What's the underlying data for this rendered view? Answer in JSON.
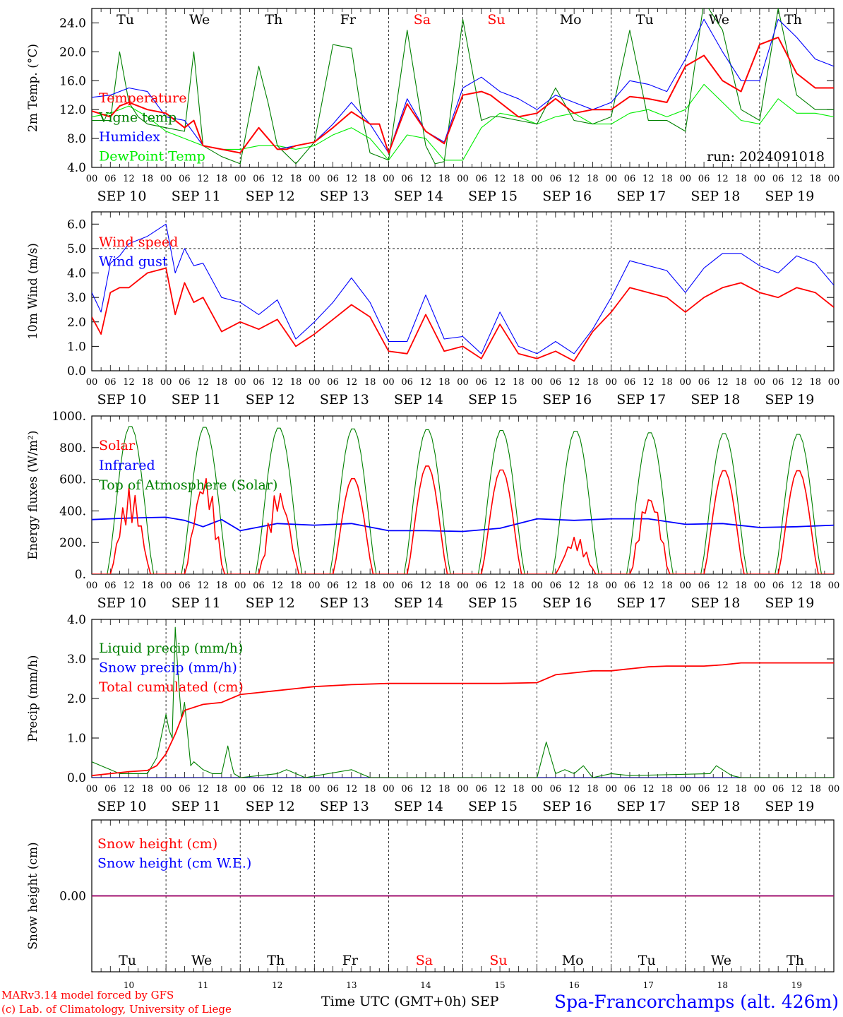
{
  "days": [
    "Tu",
    "We",
    "Th",
    "Fr",
    "Sa",
    "Su",
    "Mo",
    "Tu",
    "We",
    "Th"
  ],
  "weekend_days": [
    4,
    5
  ],
  "date_labels": [
    "SEP 10",
    "SEP 11",
    "SEP 12",
    "SEP 13",
    "SEP 14",
    "SEP 15",
    "SEP 16",
    "SEP 17",
    "SEP 18",
    "SEP 19"
  ],
  "bottom_day_numbers": [
    "10",
    "11",
    "12",
    "13",
    "14",
    "15",
    "16",
    "17",
    "18",
    "19"
  ],
  "hour_ticks": [
    "00",
    "06",
    "12",
    "18"
  ],
  "colors": {
    "red": "#ff0000",
    "darkgreen": "#008000",
    "blue": "#0000ff",
    "lightgreen": "#00ee00",
    "purple": "#800080",
    "weekend": "#ff0000",
    "axis": "#000000"
  },
  "run_label": "run: 2024091018",
  "xlabel": "Time UTC (GMT+0h) SEP",
  "station": "Spa-Francorchamps (alt. 426m)",
  "credit_1": "MARv3.14 model forced by GFS",
  "credit_2": "(c) Lab. of Climatology, University of Liege",
  "chart_data": [
    {
      "type": "line",
      "ylabel": "2m Temp. (°C)",
      "ylim": [
        4,
        26
      ],
      "yticks": [
        "4.0",
        "8.0",
        "12.0",
        "16.0",
        "20.0",
        "24.0"
      ],
      "ytick_values": [
        4,
        8,
        12,
        16,
        20,
        24
      ],
      "x_unit": "hours since SEP 10 00 UTC",
      "series": [
        {
          "name": "Temperature",
          "color": "red",
          "x": [
            0,
            6,
            9,
            12,
            18,
            24,
            30,
            33,
            36,
            42,
            48,
            54,
            60,
            63,
            66,
            72,
            78,
            84,
            90,
            93,
            96,
            102,
            108,
            114,
            120,
            126,
            129,
            132,
            138,
            144,
            150,
            156,
            162,
            168,
            174,
            180,
            186,
            192,
            198,
            204,
            210,
            216,
            222,
            228,
            234,
            240
          ],
          "values": [
            11.8,
            11,
            12.5,
            13,
            12,
            11.5,
            9.5,
            10.5,
            7,
            6.5,
            6,
            9.5,
            6.5,
            6.5,
            7,
            7.5,
            9.5,
            11.7,
            10,
            10,
            6,
            12.8,
            9,
            7.3,
            14,
            14.5,
            14,
            13,
            11,
            11.5,
            13.5,
            11.5,
            12,
            12,
            13.8,
            13.5,
            13,
            18,
            19.5,
            16,
            14.5,
            21,
            22,
            17,
            15,
            15
          ]
        },
        {
          "name": "Vigne temp",
          "color": "darkgreen",
          "x": [
            0,
            6,
            9,
            12,
            15,
            18,
            24,
            30,
            33,
            36,
            42,
            48,
            54,
            57,
            60,
            66,
            72,
            78,
            84,
            87,
            90,
            96,
            102,
            108,
            111,
            114,
            120,
            126,
            129,
            132,
            138,
            144,
            150,
            156,
            162,
            168,
            174,
            180,
            186,
            192,
            198,
            204,
            210,
            216,
            222,
            228,
            234,
            240
          ],
          "values": [
            10.5,
            10.5,
            20,
            13,
            11,
            10,
            9.5,
            9,
            20,
            7,
            5.5,
            4.5,
            18,
            13,
            7,
            4.5,
            7.5,
            21,
            20.5,
            12,
            6,
            5,
            23,
            7,
            4.5,
            4.8,
            24.5,
            10.5,
            11,
            11,
            10.5,
            10,
            15,
            10.5,
            10,
            11,
            23,
            10.5,
            10.5,
            9,
            27,
            23,
            12,
            10.5,
            26,
            14,
            12,
            12
          ]
        },
        {
          "name": "Humidex",
          "color": "blue",
          "x": [
            0,
            6,
            12,
            18,
            24,
            30,
            36,
            42,
            48,
            54,
            60,
            66,
            72,
            78,
            84,
            90,
            96,
            102,
            108,
            114,
            120,
            126,
            132,
            138,
            144,
            150,
            156,
            162,
            168,
            174,
            180,
            186,
            192,
            198,
            204,
            210,
            216,
            222,
            228,
            234,
            240
          ],
          "values": [
            13.7,
            14,
            15,
            14.5,
            11,
            10.5,
            7,
            6.5,
            6,
            9.5,
            6.5,
            7,
            7.5,
            10,
            13,
            10,
            6,
            13.5,
            9,
            7.5,
            15,
            16.5,
            14.5,
            13.5,
            12,
            14,
            13,
            12,
            13,
            16,
            15.5,
            14.5,
            19,
            24.5,
            20,
            16,
            16,
            24.5,
            22,
            19,
            18
          ]
        },
        {
          "name": "DewPoint Temp",
          "color": "lightgreen",
          "x": [
            0,
            6,
            12,
            18,
            24,
            30,
            36,
            42,
            48,
            54,
            60,
            66,
            72,
            78,
            84,
            90,
            96,
            102,
            108,
            114,
            120,
            126,
            132,
            138,
            144,
            150,
            156,
            162,
            168,
            174,
            180,
            186,
            192,
            198,
            204,
            210,
            216,
            222,
            228,
            234,
            240
          ],
          "values": [
            11,
            11.5,
            12.5,
            11,
            9,
            8,
            7,
            6.5,
            6.5,
            7,
            7,
            6.5,
            7,
            8.5,
            9.5,
            8,
            5,
            8.5,
            8,
            5,
            5,
            9.5,
            11.5,
            11,
            10,
            11,
            11.5,
            10,
            10,
            11.5,
            12,
            11,
            12,
            15.5,
            13,
            10.5,
            10,
            13.5,
            11.5,
            11.5,
            11
          ]
        }
      ]
    },
    {
      "type": "line",
      "ylabel": "10m Wind (m/s)",
      "ylim": [
        0,
        6.5
      ],
      "yticks": [
        "0.0",
        "1.0",
        "2.0",
        "3.0",
        "4.0",
        "5.0",
        "6.0"
      ],
      "ytick_values": [
        0,
        1,
        2,
        3,
        4,
        5,
        6
      ],
      "reference_line": 5,
      "series": [
        {
          "name": "Wind speed",
          "color": "red",
          "x": [
            0,
            3,
            6,
            9,
            12,
            18,
            24,
            27,
            30,
            33,
            36,
            42,
            48,
            54,
            60,
            66,
            72,
            78,
            84,
            90,
            96,
            102,
            108,
            114,
            120,
            126,
            132,
            138,
            144,
            150,
            156,
            162,
            168,
            174,
            180,
            186,
            192,
            198,
            204,
            210,
            216,
            222,
            228,
            234,
            240
          ],
          "values": [
            2.2,
            1.5,
            3.2,
            3.4,
            3.4,
            4,
            4.2,
            2.3,
            3.6,
            2.8,
            3,
            1.6,
            2,
            1.7,
            2.1,
            1,
            1.5,
            2.1,
            2.7,
            2.2,
            0.8,
            0.7,
            2.3,
            0.8,
            1,
            0.5,
            1.9,
            0.7,
            0.5,
            0.8,
            0.4,
            1.6,
            2.4,
            3.4,
            3.2,
            3,
            2.4,
            3,
            3.4,
            3.6,
            3.2,
            3,
            3.4,
            3.2,
            2.6
          ]
        },
        {
          "name": "Wind gust",
          "color": "blue",
          "x": [
            0,
            3,
            6,
            9,
            12,
            18,
            24,
            27,
            30,
            33,
            36,
            42,
            48,
            54,
            60,
            66,
            72,
            78,
            84,
            90,
            96,
            102,
            108,
            114,
            120,
            126,
            132,
            138,
            144,
            150,
            156,
            162,
            168,
            174,
            180,
            186,
            192,
            198,
            204,
            210,
            216,
            222,
            228,
            234,
            240
          ],
          "values": [
            3.2,
            2.4,
            4.4,
            4.7,
            5.2,
            5.5,
            6,
            4,
            5,
            4.3,
            4.4,
            3,
            2.8,
            2.3,
            2.9,
            1.3,
            2,
            2.8,
            3.8,
            2.8,
            1.2,
            1.2,
            3.1,
            1.3,
            1.4,
            0.7,
            2.4,
            1,
            0.7,
            1.2,
            0.7,
            1.7,
            3,
            4.5,
            4.3,
            4.1,
            3.2,
            4.2,
            4.8,
            4.8,
            4.3,
            4,
            4.7,
            4.4,
            3.5
          ]
        }
      ]
    },
    {
      "type": "line",
      "ylabel": "Energy fluxes (W/m²)",
      "ylim": [
        0,
        1000
      ],
      "yticks": [
        "0.",
        "200.",
        "400.",
        "600.",
        "800.",
        "1000."
      ],
      "ytick_values": [
        0,
        200,
        400,
        600,
        800,
        1000
      ],
      "toa_peaks": [
        940,
        935,
        930,
        925,
        920,
        915,
        910,
        900,
        895,
        890
      ],
      "solar_peaks": [
        550,
        640,
        550,
        610,
        690,
        665,
        240,
        530,
        660,
        660
      ],
      "series": [
        {
          "name": "Solar",
          "color": "red",
          "per_day_peak": "solar_peaks"
        },
        {
          "name": "Infrared",
          "color": "blue",
          "x": [
            0,
            12,
            24,
            30,
            36,
            42,
            48,
            60,
            72,
            84,
            96,
            108,
            120,
            132,
            144,
            156,
            168,
            180,
            192,
            204,
            216,
            228,
            240
          ],
          "values": [
            345,
            355,
            360,
            340,
            300,
            345,
            275,
            320,
            310,
            320,
            275,
            275,
            270,
            290,
            350,
            340,
            350,
            350,
            315,
            320,
            295,
            300,
            310
          ]
        },
        {
          "name": "Top of Atmosphere (Solar)",
          "color": "darkgreen",
          "per_day_peak": "toa_peaks"
        }
      ]
    },
    {
      "type": "line",
      "ylabel": "Precip (mm/h)",
      "ylim": [
        0,
        4
      ],
      "yticks": [
        "0.0",
        "1.0",
        "2.0",
        "3.0",
        "4.0"
      ],
      "ytick_values": [
        0,
        1,
        2,
        3,
        4
      ],
      "series": [
        {
          "name": "Liquid precip (mm/h)",
          "color": "darkgreen",
          "x": [
            0,
            3,
            6,
            9,
            18,
            21,
            24,
            25,
            26,
            27,
            28,
            29,
            30,
            32,
            33,
            36,
            39,
            42,
            44,
            45,
            46,
            48,
            60,
            63,
            66,
            69,
            84,
            87,
            90,
            144,
            147,
            150,
            153,
            156,
            159,
            162,
            168,
            174,
            200,
            202,
            204,
            207,
            210,
            240
          ],
          "values": [
            0.4,
            0.3,
            0.2,
            0.1,
            0.1,
            0.5,
            1.6,
            1.2,
            1.0,
            3.8,
            2.5,
            1.5,
            1.9,
            0.3,
            0.4,
            0.2,
            0.1,
            0.1,
            0.8,
            0.4,
            0.1,
            0.0,
            0.1,
            0.2,
            0.1,
            0.0,
            0.2,
            0.1,
            0.0,
            0.0,
            0.9,
            0.1,
            0.2,
            0.1,
            0.3,
            0.0,
            0.1,
            0.05,
            0.1,
            0.3,
            0.2,
            0.05,
            0.0,
            0.0
          ]
        },
        {
          "name": "Snow precip (mm/h)",
          "color": "blue",
          "x": [
            0,
            240
          ],
          "values": [
            0,
            0
          ]
        },
        {
          "name": "Total cumulated (cm)",
          "color": "red",
          "x": [
            0,
            6,
            12,
            18,
            21,
            24,
            27,
            30,
            36,
            42,
            48,
            54,
            60,
            66,
            72,
            84,
            96,
            108,
            120,
            132,
            144,
            150,
            156,
            162,
            168,
            174,
            180,
            186,
            192,
            198,
            204,
            210,
            216,
            240
          ],
          "values": [
            0.05,
            0.1,
            0.15,
            0.18,
            0.3,
            0.6,
            1.1,
            1.7,
            1.85,
            1.9,
            2.1,
            2.15,
            2.2,
            2.25,
            2.3,
            2.35,
            2.38,
            2.38,
            2.38,
            2.38,
            2.4,
            2.6,
            2.65,
            2.7,
            2.7,
            2.75,
            2.8,
            2.82,
            2.82,
            2.82,
            2.85,
            2.9,
            2.9,
            2.9
          ]
        }
      ]
    },
    {
      "type": "line",
      "ylabel": "Snow height (cm)",
      "ylim": [
        -1,
        1
      ],
      "yticks": [
        "0.00"
      ],
      "ytick_values": [
        0
      ],
      "series": [
        {
          "name": "Snow height (cm)",
          "color": "red",
          "x": [
            0,
            240
          ],
          "values": [
            0,
            0
          ]
        },
        {
          "name": "Snow height (cm W.E.)",
          "color": "blue",
          "x": [
            0,
            240
          ],
          "values": [
            0,
            0
          ]
        }
      ]
    }
  ]
}
